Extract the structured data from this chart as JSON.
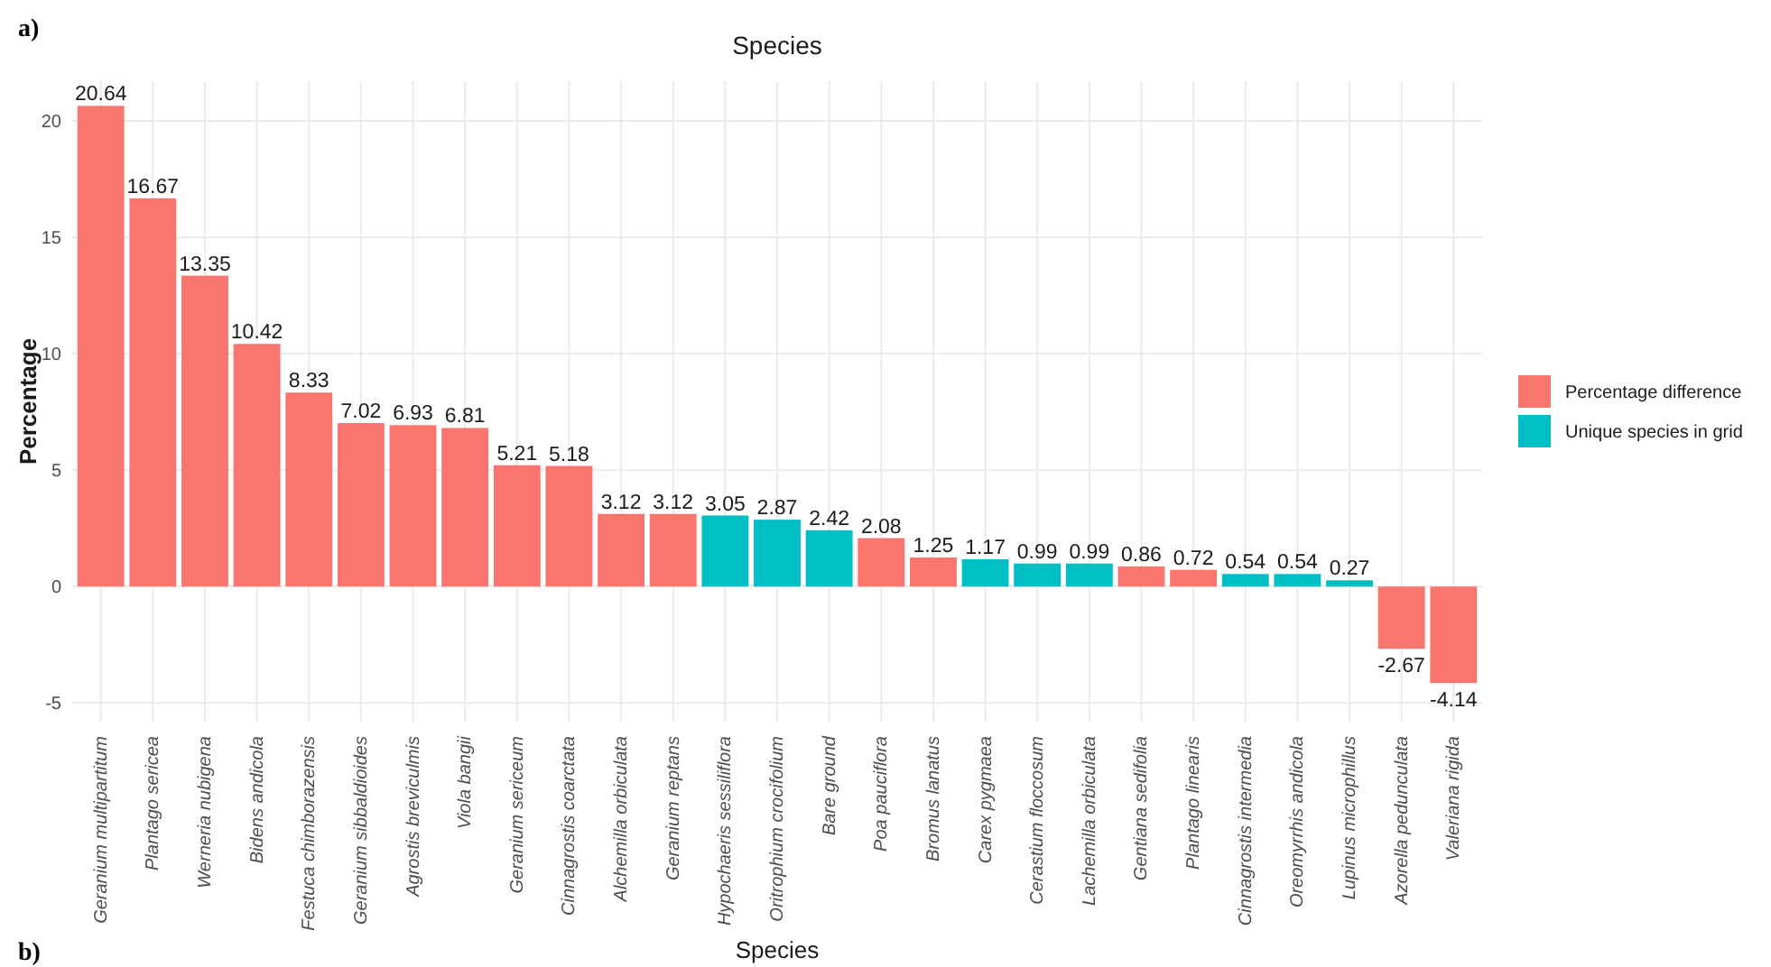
{
  "chart_data": {
    "type": "bar",
    "title": "Species",
    "xlabel": "Species",
    "ylabel": "Percentage",
    "annotations": [
      "a)",
      "b)"
    ],
    "categories": [
      "Geranium multipartitum",
      "Plantago sericea",
      "Werneria nubigena",
      "Bidens andicola",
      "Festuca chimborazensis",
      "Geranium sibbaldioides",
      "Agrostis breviculmis",
      "Viola bangii",
      "Geranium sericeum",
      "Cinnagrostis coarctata",
      "Alchemilla orbiculata",
      "Geranium reptans",
      "Hypochaeris sessiliflora",
      "Oritrophium crocifolium",
      "Bare ground",
      "Poa pauciflora",
      "Bromus lanatus",
      "Carex pygmaea",
      "Cerastium floccosum",
      "Lachemilla orbiculata",
      "Gentiana sedifolia",
      "Plantago linearis",
      "Cinnagrostis intermedia",
      "Oreomyrrhis andicola",
      "Lupinus microphillus",
      "Azorella pedunculata",
      "Valeriana rigida"
    ],
    "series": [
      {
        "name": "Percentage difference",
        "color": "#f8766d",
        "values": [
          20.64,
          16.67,
          13.35,
          10.42,
          8.33,
          7.02,
          6.93,
          6.81,
          5.21,
          5.18,
          3.12,
          3.12,
          null,
          null,
          null,
          2.08,
          1.25,
          null,
          null,
          null,
          0.86,
          0.72,
          null,
          null,
          null,
          -2.67,
          -4.14
        ]
      },
      {
        "name": "Unique species in grid",
        "color": "#00bfc4",
        "values": [
          null,
          null,
          null,
          null,
          null,
          null,
          null,
          null,
          null,
          null,
          null,
          null,
          3.05,
          2.87,
          2.42,
          null,
          null,
          1.17,
          0.99,
          0.99,
          null,
          null,
          0.54,
          0.54,
          0.27,
          null,
          null
        ]
      }
    ],
    "ylim": [
      -5.8,
      21.7
    ],
    "yticks": [
      -5,
      0,
      5,
      10,
      15,
      20
    ],
    "grid": true,
    "legend": "right",
    "data_labels": true
  }
}
